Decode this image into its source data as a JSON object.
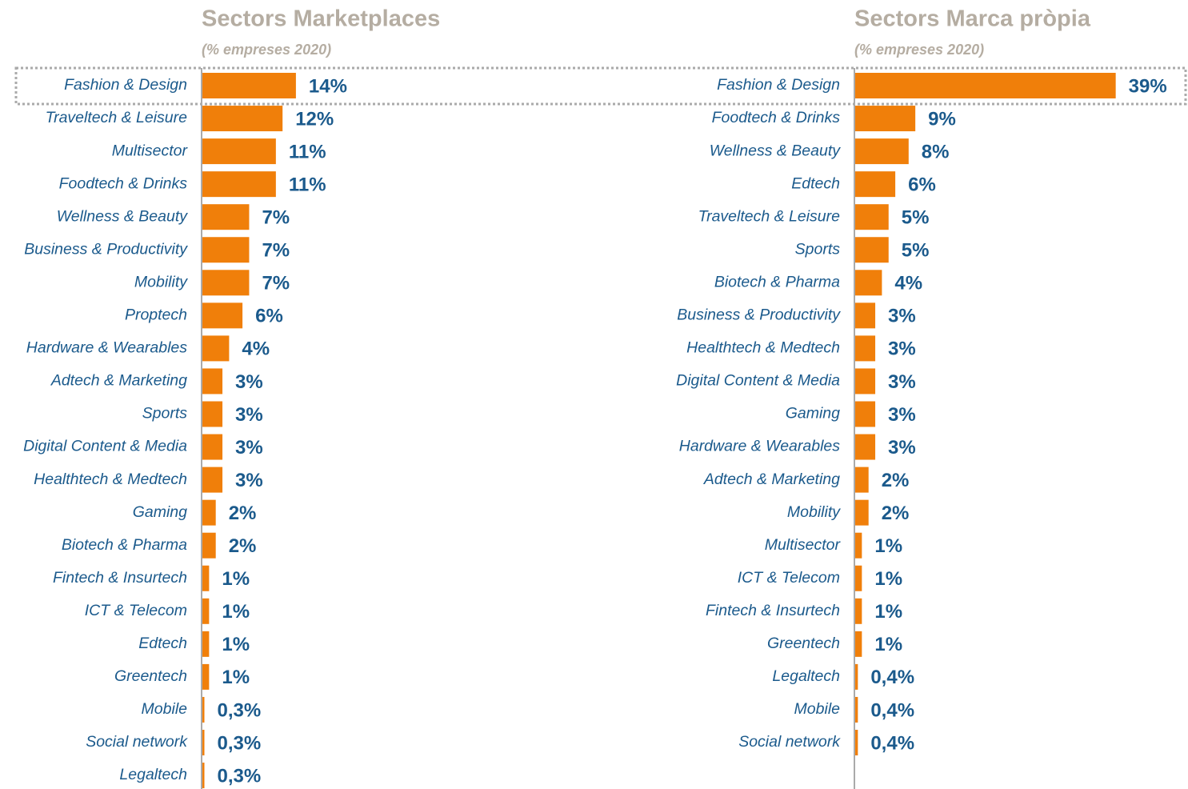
{
  "chart_data": [
    {
      "type": "bar",
      "orientation": "horizontal",
      "title": "Sectors Marketplaces",
      "subtitle": "(% empreses 2020)",
      "color": "#f07f0a",
      "categories": [
        "Fashion & Design",
        "Traveltech & Leisure",
        "Multisector",
        "Foodtech & Drinks",
        "Wellness & Beauty",
        "Business & Productivity",
        "Mobility",
        "Proptech",
        "Hardware & Wearables",
        "Adtech & Marketing",
        "Sports",
        "Digital Content & Media",
        "Healthtech & Medtech",
        "Gaming",
        "Biotech & Pharma",
        "Fintech & Insurtech",
        "ICT & Telecom",
        "Edtech",
        "Greentech",
        "Mobile",
        "Social network",
        "Legaltech"
      ],
      "values": [
        14,
        12,
        11,
        11,
        7,
        7,
        7,
        6,
        4,
        3,
        3,
        3,
        3,
        2,
        2,
        1,
        1,
        1,
        1,
        0.3,
        0.3,
        0.3
      ],
      "value_labels": [
        "14%",
        "12%",
        "11%",
        "11%",
        "7%",
        "7%",
        "7%",
        "6%",
        "4%",
        "3%",
        "3%",
        "3%",
        "3%",
        "2%",
        "2%",
        "1%",
        "1%",
        "1%",
        "1%",
        "0,3%",
        "0,3%",
        "0,3%"
      ]
    },
    {
      "type": "bar",
      "orientation": "horizontal",
      "title": "Sectors Marca pròpia",
      "subtitle": "(% empreses 2020)",
      "color": "#f07f0a",
      "categories": [
        "Fashion & Design",
        "Foodtech & Drinks",
        "Wellness & Beauty",
        "Edtech",
        "Traveltech & Leisure",
        "Sports",
        "Biotech & Pharma",
        "Business & Productivity",
        "Healthtech & Medtech",
        "Digital Content & Media",
        "Gaming",
        "Hardware & Wearables",
        "Adtech & Marketing",
        "Mobility",
        "Multisector",
        "ICT & Telecom",
        "Fintech & Insurtech",
        "Greentech",
        "Legaltech",
        "Mobile",
        "Social network"
      ],
      "values": [
        39,
        9,
        8,
        6,
        5,
        5,
        4,
        3,
        3,
        3,
        3,
        3,
        2,
        2,
        1,
        1,
        1,
        1,
        0.4,
        0.4,
        0.4
      ],
      "value_labels": [
        "39%",
        "9%",
        "8%",
        "6%",
        "5%",
        "5%",
        "4%",
        "3%",
        "3%",
        "3%",
        "3%",
        "3%",
        "2%",
        "2%",
        "1%",
        "1%",
        "1%",
        "1%",
        "0,4%",
        "0,4%",
        "0,4%"
      ]
    }
  ]
}
